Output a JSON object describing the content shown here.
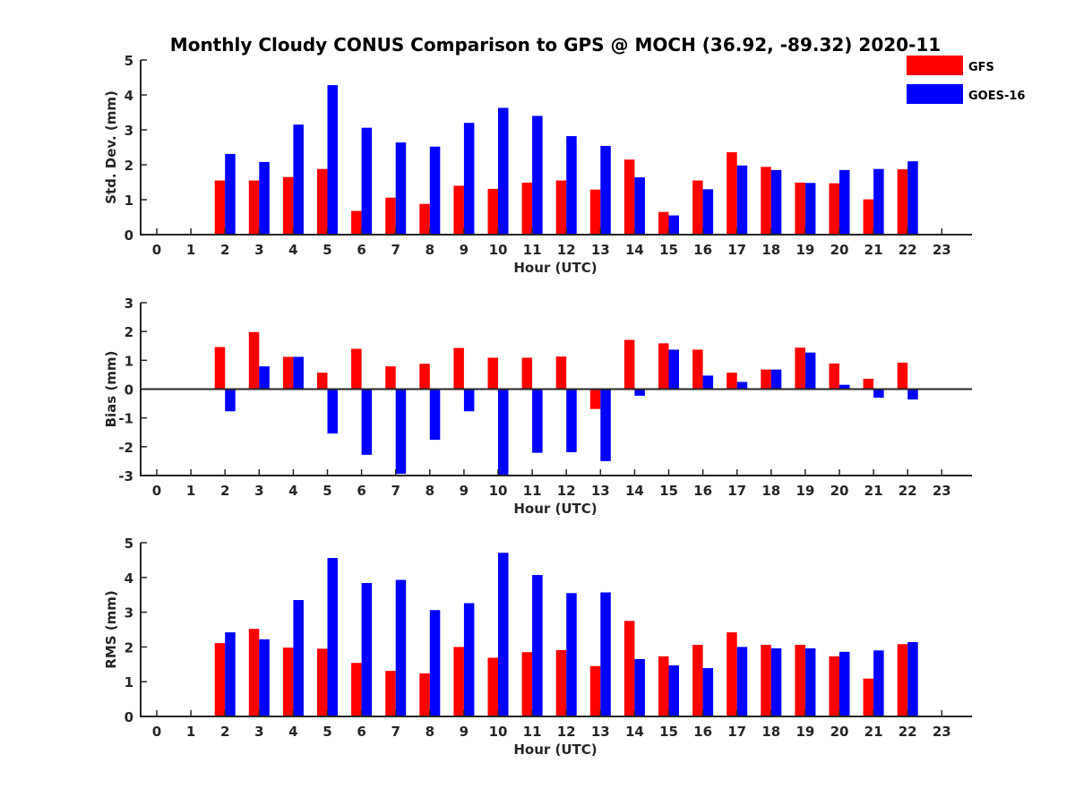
{
  "title": "Monthly Cloudy CONUS Comparison to GPS @ MOCH (36.92, -89.32) 2020-11",
  "legend": {
    "placement": "top-right",
    "items": [
      {
        "name": "GFS",
        "color": "#ff0000"
      },
      {
        "name": "GOES-16",
        "color": "#0000ff"
      }
    ]
  },
  "colors": {
    "gfs": "#ff0000",
    "goes": "#0000ff",
    "axis": "#262626"
  },
  "chart_data": [
    {
      "type": "bar",
      "ylabel": "Std. Dev. (mm)",
      "xlabel": "Hour (UTC)",
      "categories": [
        "0",
        "1",
        "2",
        "3",
        "4",
        "5",
        "6",
        "7",
        "8",
        "9",
        "10",
        "11",
        "12",
        "13",
        "14",
        "15",
        "16",
        "17",
        "18",
        "19",
        "20",
        "21",
        "22",
        "23"
      ],
      "ylim": [
        0,
        5
      ],
      "yticks": [
        "0",
        "1",
        "2",
        "3",
        "4",
        "5"
      ],
      "series": [
        {
          "name": "GFS",
          "values": [
            null,
            null,
            1.55,
            1.55,
            1.65,
            1.88,
            0.68,
            1.06,
            0.88,
            1.4,
            1.31,
            1.49,
            1.55,
            1.29,
            2.15,
            0.65,
            1.55,
            2.36,
            1.94,
            1.49,
            1.47,
            1.01,
            1.87,
            null
          ]
        },
        {
          "name": "GOES-16",
          "values": [
            null,
            null,
            2.31,
            2.08,
            3.15,
            4.28,
            3.06,
            2.64,
            2.52,
            3.2,
            3.63,
            3.4,
            2.82,
            2.54,
            1.64,
            0.55,
            1.3,
            1.98,
            1.85,
            1.48,
            1.85,
            1.88,
            2.1,
            null
          ]
        }
      ]
    },
    {
      "type": "bar",
      "ylabel": "Bias (mm)",
      "xlabel": "Hour (UTC)",
      "categories": [
        "0",
        "1",
        "2",
        "3",
        "4",
        "5",
        "6",
        "7",
        "8",
        "9",
        "10",
        "11",
        "12",
        "13",
        "14",
        "15",
        "16",
        "17",
        "18",
        "19",
        "20",
        "21",
        "22",
        "23"
      ],
      "ylim": [
        -3,
        3
      ],
      "yticks": [
        "-3",
        "-2",
        "-1",
        "0",
        "1",
        "2",
        "3"
      ],
      "series": [
        {
          "name": "GFS",
          "values": [
            null,
            null,
            1.46,
            1.98,
            1.12,
            0.57,
            1.4,
            0.79,
            0.88,
            1.43,
            1.09,
            1.09,
            1.13,
            -0.69,
            1.71,
            1.59,
            1.37,
            0.57,
            0.68,
            1.44,
            0.89,
            0.36,
            0.92,
            null
          ]
        },
        {
          "name": "GOES-16",
          "values": [
            null,
            null,
            -0.77,
            0.79,
            1.12,
            -1.54,
            -2.28,
            -2.94,
            -1.76,
            -0.77,
            -3.0,
            -2.21,
            -2.19,
            -2.5,
            -0.23,
            1.37,
            0.47,
            0.25,
            0.68,
            1.27,
            0.15,
            -0.3,
            -0.36,
            null
          ]
        }
      ]
    },
    {
      "type": "bar",
      "ylabel": "RMS (mm)",
      "xlabel": "Hour (UTC)",
      "categories": [
        "0",
        "1",
        "2",
        "3",
        "4",
        "5",
        "6",
        "7",
        "8",
        "9",
        "10",
        "11",
        "12",
        "13",
        "14",
        "15",
        "16",
        "17",
        "18",
        "19",
        "20",
        "21",
        "22",
        "23"
      ],
      "ylim": [
        0,
        5
      ],
      "yticks": [
        "0",
        "1",
        "2",
        "3",
        "4",
        "5"
      ],
      "series": [
        {
          "name": "GFS",
          "values": [
            null,
            null,
            2.11,
            2.52,
            1.98,
            1.95,
            1.54,
            1.31,
            1.24,
            2.0,
            1.69,
            1.85,
            1.91,
            1.45,
            2.75,
            1.73,
            2.06,
            2.42,
            2.06,
            2.06,
            1.73,
            1.09,
            2.08,
            null
          ]
        },
        {
          "name": "GOES-16",
          "values": [
            null,
            null,
            2.42,
            2.22,
            3.35,
            4.56,
            3.84,
            3.93,
            3.06,
            3.26,
            4.71,
            4.07,
            3.55,
            3.57,
            1.65,
            1.47,
            1.39,
            2.0,
            1.96,
            1.96,
            1.86,
            1.9,
            2.14,
            null
          ]
        }
      ]
    }
  ]
}
